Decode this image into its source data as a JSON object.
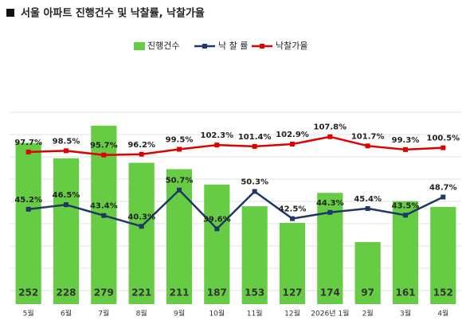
{
  "chart_data": {
    "type": "bar_line",
    "title": "서울 아파트 진행건수 및 낙찰률, 낙찰가율",
    "categories": [
      "5월",
      "6월",
      "7월",
      "8월",
      "9월",
      "10월",
      "11월",
      "12월",
      "2026년 1월",
      "2월",
      "3월",
      "4월"
    ],
    "series": [
      {
        "name": "진행건수",
        "color": "#66cc44",
        "type": "bar",
        "values": [
          252,
          228,
          279,
          221,
          211,
          187,
          153,
          127,
          174,
          97,
          161,
          152
        ]
      },
      {
        "name": "낙 찰 률",
        "color": "#1f3864",
        "type": "line",
        "axis": "y2",
        "values": [
          45.2,
          46.5,
          43.4,
          40.3,
          50.7,
          39.6,
          50.3,
          42.5,
          44.3,
          45.4,
          43.5,
          48.7
        ],
        "value_labels": [
          "45.2%",
          "46.5%",
          "43.4%",
          "40.3%",
          "50.7%",
          "39.6%",
          "50.3%",
          "42.5%",
          "44.3%",
          "45.4%",
          "43.5%",
          "48.7%"
        ]
      },
      {
        "name": "낙찰가율",
        "color": "#e00000",
        "type": "line",
        "axis": "y3",
        "values": [
          97.7,
          98.5,
          95.7,
          96.2,
          99.5,
          102.3,
          101.4,
          102.9,
          107.8,
          101.7,
          99.3,
          100.5
        ],
        "value_labels": [
          "97.7%",
          "98.5%",
          "95.7%",
          "96.2%",
          "99.5%",
          "102.3%",
          "101.4%",
          "102.9%",
          "107.8%",
          "101.7%",
          "99.3%",
          "100.5%"
        ]
      }
    ],
    "ylim": [
      0,
      300
    ],
    "y2lim": [
      18,
      73
    ],
    "y3lim": [
      -3,
      124
    ]
  }
}
